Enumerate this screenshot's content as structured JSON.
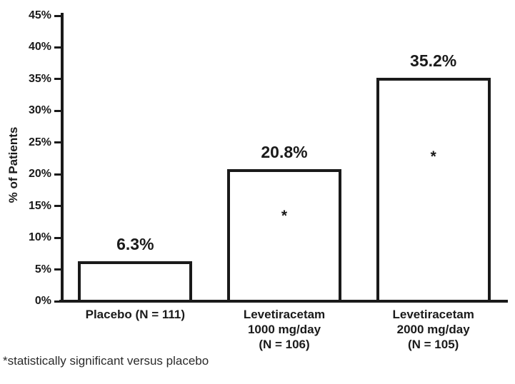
{
  "chart_data": {
    "type": "bar",
    "title": "",
    "xlabel": "",
    "ylabel": "% of Patients",
    "ylim": [
      0,
      45
    ],
    "ytick_step": 5,
    "ytick_labels": [
      "0%",
      "5%",
      "10%",
      "15%",
      "20%",
      "25%",
      "30%",
      "35%",
      "40%",
      "45%"
    ],
    "grid": false,
    "legend": null,
    "categories": [
      [
        "Placebo (N = 111)"
      ],
      [
        "Levetiracetam",
        "1000 mg/day",
        "(N = 106)"
      ],
      [
        "Levetiracetam",
        "2000 mg/day",
        "(N = 105)"
      ]
    ],
    "values": [
      6.3,
      20.8,
      35.2
    ],
    "value_labels": [
      "6.3%",
      "20.8%",
      "35.2%"
    ],
    "statistically_significant": [
      false,
      true,
      true
    ],
    "significance_marker": "*",
    "footnote": "*statistically significant versus placebo",
    "colors": {
      "ink": "#1a1a1a",
      "bar_fill": "#ffffff",
      "bar_border": "#1a1a1a",
      "background": "#ffffff"
    }
  }
}
